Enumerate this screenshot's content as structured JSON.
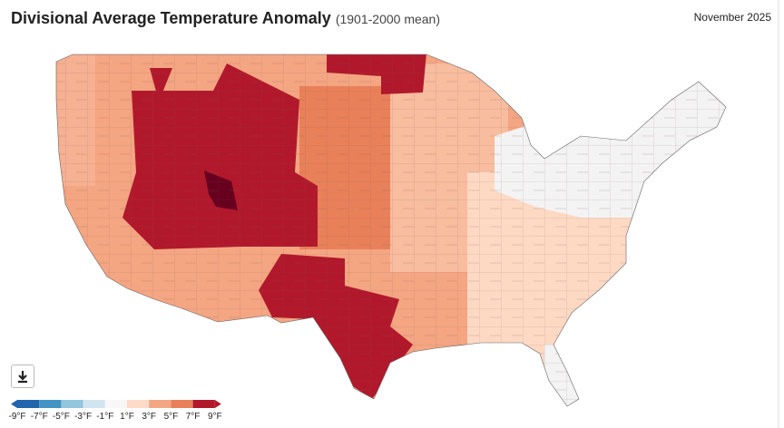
{
  "header": {
    "title": "Divisional Average Temperature Anomaly",
    "subtitle": "(1901-2000 mean)",
    "date": "November 2025"
  },
  "legend": {
    "colors": [
      "#2166ac",
      "#4393c3",
      "#92c5de",
      "#d1e5f0",
      "#f7f7f7",
      "#fddbc7",
      "#f4a582",
      "#e8805a",
      "#b2182b"
    ],
    "labels": [
      "-9°F",
      "-7°F",
      "-5°F",
      "-3°F",
      "-1°F",
      "1°F",
      "3°F",
      "5°F",
      "7°F",
      "9°F"
    ]
  }
}
